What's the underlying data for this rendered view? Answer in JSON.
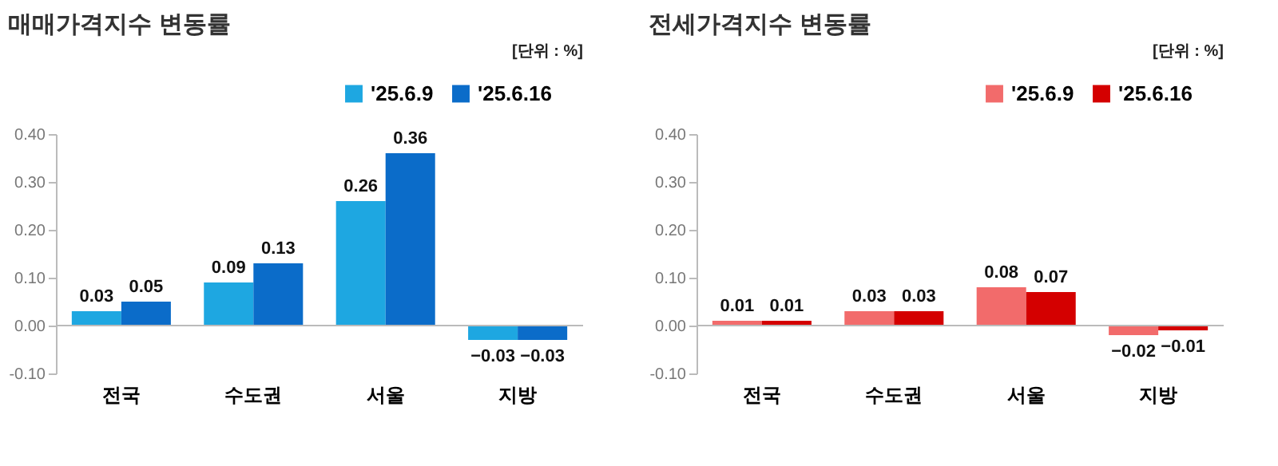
{
  "chart_data": [
    {
      "type": "bar",
      "title": "매매가격지수 변동률",
      "annotations": [
        "[단위 : %]"
      ],
      "categories": [
        "전국",
        "수도권",
        "서울",
        "지방"
      ],
      "series": [
        {
          "name": "'25.6.9",
          "color": "#1ea7e1",
          "values": [
            0.03,
            0.09,
            0.26,
            -0.03
          ]
        },
        {
          "name": "'25.6.16",
          "color": "#0b6cc9",
          "values": [
            0.05,
            0.13,
            0.36,
            -0.03
          ]
        }
      ],
      "ylim": [
        -0.1,
        0.4
      ],
      "yticks": [
        {
          "value": -0.1,
          "label": "-0.10"
        },
        {
          "value": 0,
          "label": "0.00"
        },
        {
          "value": 0.1,
          "label": "0.10"
        },
        {
          "value": 0.2,
          "label": "0.20"
        },
        {
          "value": 0.3,
          "label": "0.30"
        },
        {
          "value": 0.4,
          "label": "0.40"
        }
      ],
      "data_labels": true,
      "legend": "top right",
      "grid": false,
      "ref_lines": [
        {
          "axis": "y",
          "value": 0,
          "color": "#bbbbbb"
        }
      ]
    },
    {
      "type": "bar",
      "title": "전세가격지수 변동률",
      "annotations": [
        "[단위 : %]"
      ],
      "categories": [
        "전국",
        "수도권",
        "서울",
        "지방"
      ],
      "series": [
        {
          "name": "'25.6.9",
          "color": "#f26b6b",
          "values": [
            0.01,
            0.03,
            0.08,
            -0.02
          ]
        },
        {
          "name": "'25.6.16",
          "color": "#d40000",
          "values": [
            0.01,
            0.03,
            0.07,
            -0.01
          ]
        }
      ],
      "ylim": [
        -0.1,
        0.4
      ],
      "yticks": [
        {
          "value": -0.1,
          "label": "-0.10"
        },
        {
          "value": 0,
          "label": "0.00"
        },
        {
          "value": 0.1,
          "label": "0.10"
        },
        {
          "value": 0.2,
          "label": "0.20"
        },
        {
          "value": 0.3,
          "label": "0.30"
        },
        {
          "value": 0.4,
          "label": "0.40"
        }
      ],
      "data_labels": true,
      "legend": "top right",
      "grid": false,
      "ref_lines": [
        {
          "axis": "y",
          "value": 0,
          "color": "#bbbbbb"
        }
      ]
    }
  ]
}
